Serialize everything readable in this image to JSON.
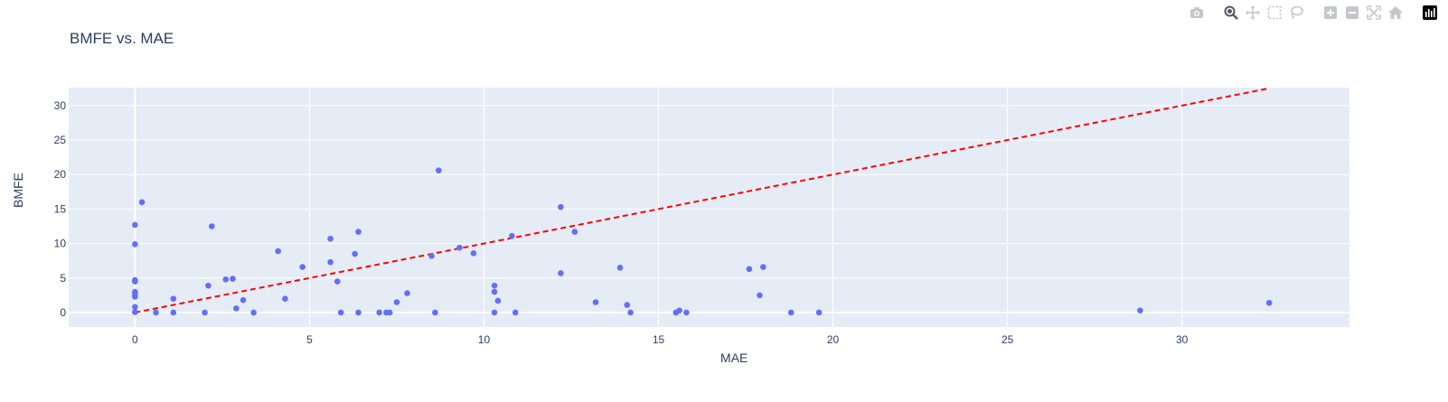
{
  "toolbar": {
    "icons": [
      "camera-icon",
      "zoom-icon",
      "pan-icon",
      "box-select-icon",
      "lasso-select-icon",
      "zoom-in-icon",
      "zoom-out-icon",
      "autoscale-icon",
      "reset-axes-icon",
      "plotly-logo-icon"
    ]
  },
  "colors": {
    "plot_bg": "#e5ecf6",
    "grid": "#ffffff",
    "marker": "#636efa",
    "reference_line": "#ff0000",
    "text": "#2a3f5f",
    "toolbar_icon": "#c4c7cc"
  },
  "chart_data": {
    "type": "scatter",
    "title": "BMFE vs. MAE",
    "xlabel": "MAE",
    "ylabel": "BMFE",
    "xlim": [
      -1.9,
      34.8
    ],
    "ylim": [
      -2.1,
      32.6
    ],
    "xticks": [
      0,
      5,
      10,
      15,
      20,
      25,
      30
    ],
    "yticks": [
      0,
      5,
      10,
      15,
      20,
      25,
      30
    ],
    "grid": true,
    "reference_line": {
      "style": "dashed",
      "x": [
        0,
        32.5
      ],
      "y": [
        0,
        32.5
      ]
    },
    "series": [
      {
        "points": [
          [
            0,
            12.7
          ],
          [
            0,
            9.9
          ],
          [
            0,
            4.7
          ],
          [
            0,
            4.5
          ],
          [
            0,
            3.0
          ],
          [
            0,
            2.6
          ],
          [
            0,
            2.3
          ],
          [
            0,
            0.8
          ],
          [
            0,
            0.05
          ],
          [
            0.2,
            16.0
          ],
          [
            0.6,
            0.0
          ],
          [
            1.1,
            2.0
          ],
          [
            1.1,
            0.0
          ],
          [
            2.0,
            0.0
          ],
          [
            2.1,
            3.9
          ],
          [
            2.2,
            12.5
          ],
          [
            2.6,
            4.8
          ],
          [
            2.8,
            4.9
          ],
          [
            2.9,
            0.6
          ],
          [
            3.1,
            1.8
          ],
          [
            3.4,
            0.0
          ],
          [
            4.1,
            8.9
          ],
          [
            4.3,
            2.0
          ],
          [
            4.8,
            6.6
          ],
          [
            5.6,
            7.3
          ],
          [
            5.6,
            10.7
          ],
          [
            5.8,
            4.5
          ],
          [
            5.9,
            0.0
          ],
          [
            6.3,
            8.5
          ],
          [
            6.4,
            11.7
          ],
          [
            6.4,
            0.0
          ],
          [
            7.0,
            0.0
          ],
          [
            7.2,
            0.0
          ],
          [
            7.3,
            0.0
          ],
          [
            7.5,
            1.5
          ],
          [
            7.8,
            2.8
          ],
          [
            8.5,
            8.2
          ],
          [
            8.6,
            0.0
          ],
          [
            8.7,
            20.6
          ],
          [
            9.3,
            9.4
          ],
          [
            9.7,
            8.6
          ],
          [
            10.3,
            3.9
          ],
          [
            10.3,
            3.0
          ],
          [
            10.3,
            0.0
          ],
          [
            10.4,
            1.7
          ],
          [
            10.8,
            11.1
          ],
          [
            10.9,
            0.0
          ],
          [
            12.2,
            15.3
          ],
          [
            12.2,
            5.7
          ],
          [
            12.6,
            11.7
          ],
          [
            13.2,
            1.5
          ],
          [
            13.9,
            6.5
          ],
          [
            14.1,
            1.1
          ],
          [
            14.2,
            0.0
          ],
          [
            15.5,
            0.0
          ],
          [
            15.6,
            0.3
          ],
          [
            15.8,
            0.0
          ],
          [
            17.6,
            6.3
          ],
          [
            17.9,
            2.5
          ],
          [
            18.0,
            6.6
          ],
          [
            18.8,
            0.0
          ],
          [
            19.6,
            0.0
          ],
          [
            28.8,
            0.3
          ],
          [
            32.5,
            1.4
          ]
        ]
      }
    ]
  }
}
